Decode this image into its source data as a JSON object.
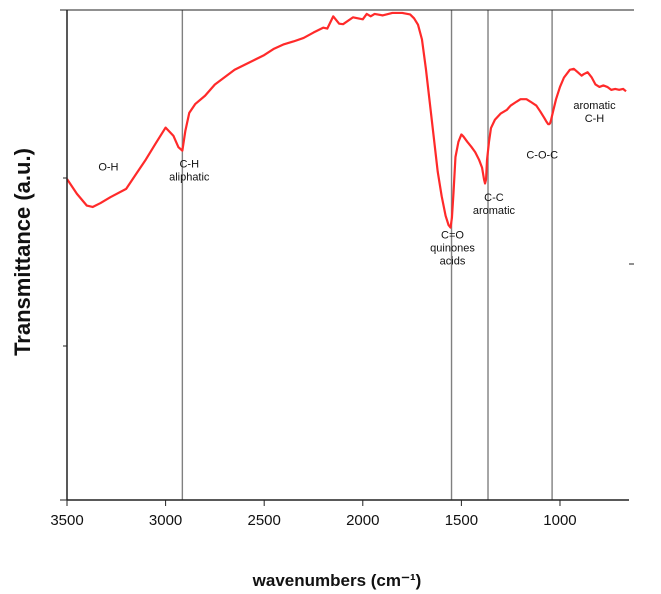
{
  "chart_data": {
    "type": "line",
    "title": "",
    "xlabel": "wavenumbers (cm⁻¹)",
    "ylabel": "Transmittance (a.u.)",
    "xlim": [
      3500,
      650
    ],
    "x_ticks": [
      3500,
      3000,
      2500,
      2000,
      1500,
      1000
    ],
    "x_reversed": true,
    "ylim": [
      0,
      100
    ],
    "grid": false,
    "legend": "none",
    "colors": {
      "line": "#ff2a2a",
      "ref_lines": "#808080",
      "axes": "#222222"
    },
    "series": [
      {
        "x": [
          3500,
          3450,
          3400,
          3370,
          3330,
          3280,
          3200,
          3150,
          3100,
          3050,
          3000,
          2960,
          2935,
          2915,
          2900,
          2880,
          2850,
          2800,
          2750,
          2700,
          2650,
          2600,
          2550,
          2500,
          2450,
          2400,
          2350,
          2300,
          2250,
          2200,
          2180,
          2150,
          2120,
          2100,
          2050,
          2000,
          1980,
          1960,
          1940,
          1900,
          1850,
          1800,
          1760,
          1740,
          1720,
          1700,
          1680,
          1660,
          1640,
          1620,
          1600,
          1580,
          1565,
          1555,
          1548,
          1540,
          1530,
          1515,
          1500,
          1490,
          1470,
          1450,
          1430,
          1410,
          1395,
          1385,
          1380,
          1375,
          1370,
          1360,
          1350,
          1330,
          1300,
          1270,
          1250,
          1220,
          1200,
          1170,
          1150,
          1120,
          1100,
          1080,
          1070,
          1060,
          1055,
          1050,
          1045,
          1035,
          1020,
          1000,
          980,
          950,
          930,
          910,
          890,
          880,
          860,
          840,
          820,
          800,
          780,
          760,
          740,
          720,
          700,
          680,
          665
        ],
        "y": [
          65.5,
          62.5,
          60.1,
          59.8,
          60.6,
          61.8,
          63.5,
          66.5,
          69.5,
          72.8,
          76.0,
          74.3,
          72.0,
          71.3,
          75.3,
          79.0,
          80.8,
          82.5,
          84.8,
          86.3,
          87.8,
          88.8,
          89.8,
          90.8,
          92.1,
          93.0,
          93.6,
          94.3,
          95.4,
          96.4,
          96.2,
          98.7,
          97.2,
          97.1,
          98.5,
          98.1,
          99.2,
          98.7,
          99.2,
          98.9,
          99.4,
          99.4,
          99.1,
          98.3,
          97.0,
          94.0,
          88.0,
          81.0,
          74.0,
          67.0,
          62.0,
          58.0,
          56.1,
          55.6,
          57.6,
          62.7,
          70.0,
          73.1,
          74.6,
          74.2,
          73.1,
          72.1,
          71.0,
          69.4,
          67.8,
          65.4,
          64.6,
          65.4,
          69.4,
          73.1,
          75.9,
          77.6,
          78.9,
          79.6,
          80.5,
          81.3,
          81.8,
          81.8,
          81.3,
          80.5,
          79.3,
          78.0,
          77.3,
          76.7,
          76.7,
          76.9,
          77.6,
          79.3,
          81.8,
          84.3,
          86.2,
          87.8,
          88.0,
          87.3,
          86.6,
          86.9,
          87.3,
          86.3,
          84.8,
          84.3,
          84.6,
          84.3,
          83.7,
          83.9,
          83.7,
          83.9,
          83.4
        ]
      }
    ],
    "reference_lines_x": [
      2915,
      1550,
      1365,
      1040
    ],
    "annotations": [
      {
        "x": 3290,
        "y": 67.2,
        "lines": [
          "O-H"
        ]
      },
      {
        "x": 2880,
        "y": 67.9,
        "lines": [
          "C-H",
          "aliphatic"
        ]
      },
      {
        "x": 1545,
        "y": 53.4,
        "lines": [
          "C=O",
          "quinones",
          "acids"
        ]
      },
      {
        "x": 1335,
        "y": 61.0,
        "lines": [
          "C-C",
          "aromatic"
        ]
      },
      {
        "x": 1090,
        "y": 69.7,
        "lines": [
          "C-O-C"
        ]
      },
      {
        "x": 825,
        "y": 79.8,
        "lines": [
          "aromatic",
          "C-H"
        ]
      }
    ]
  }
}
